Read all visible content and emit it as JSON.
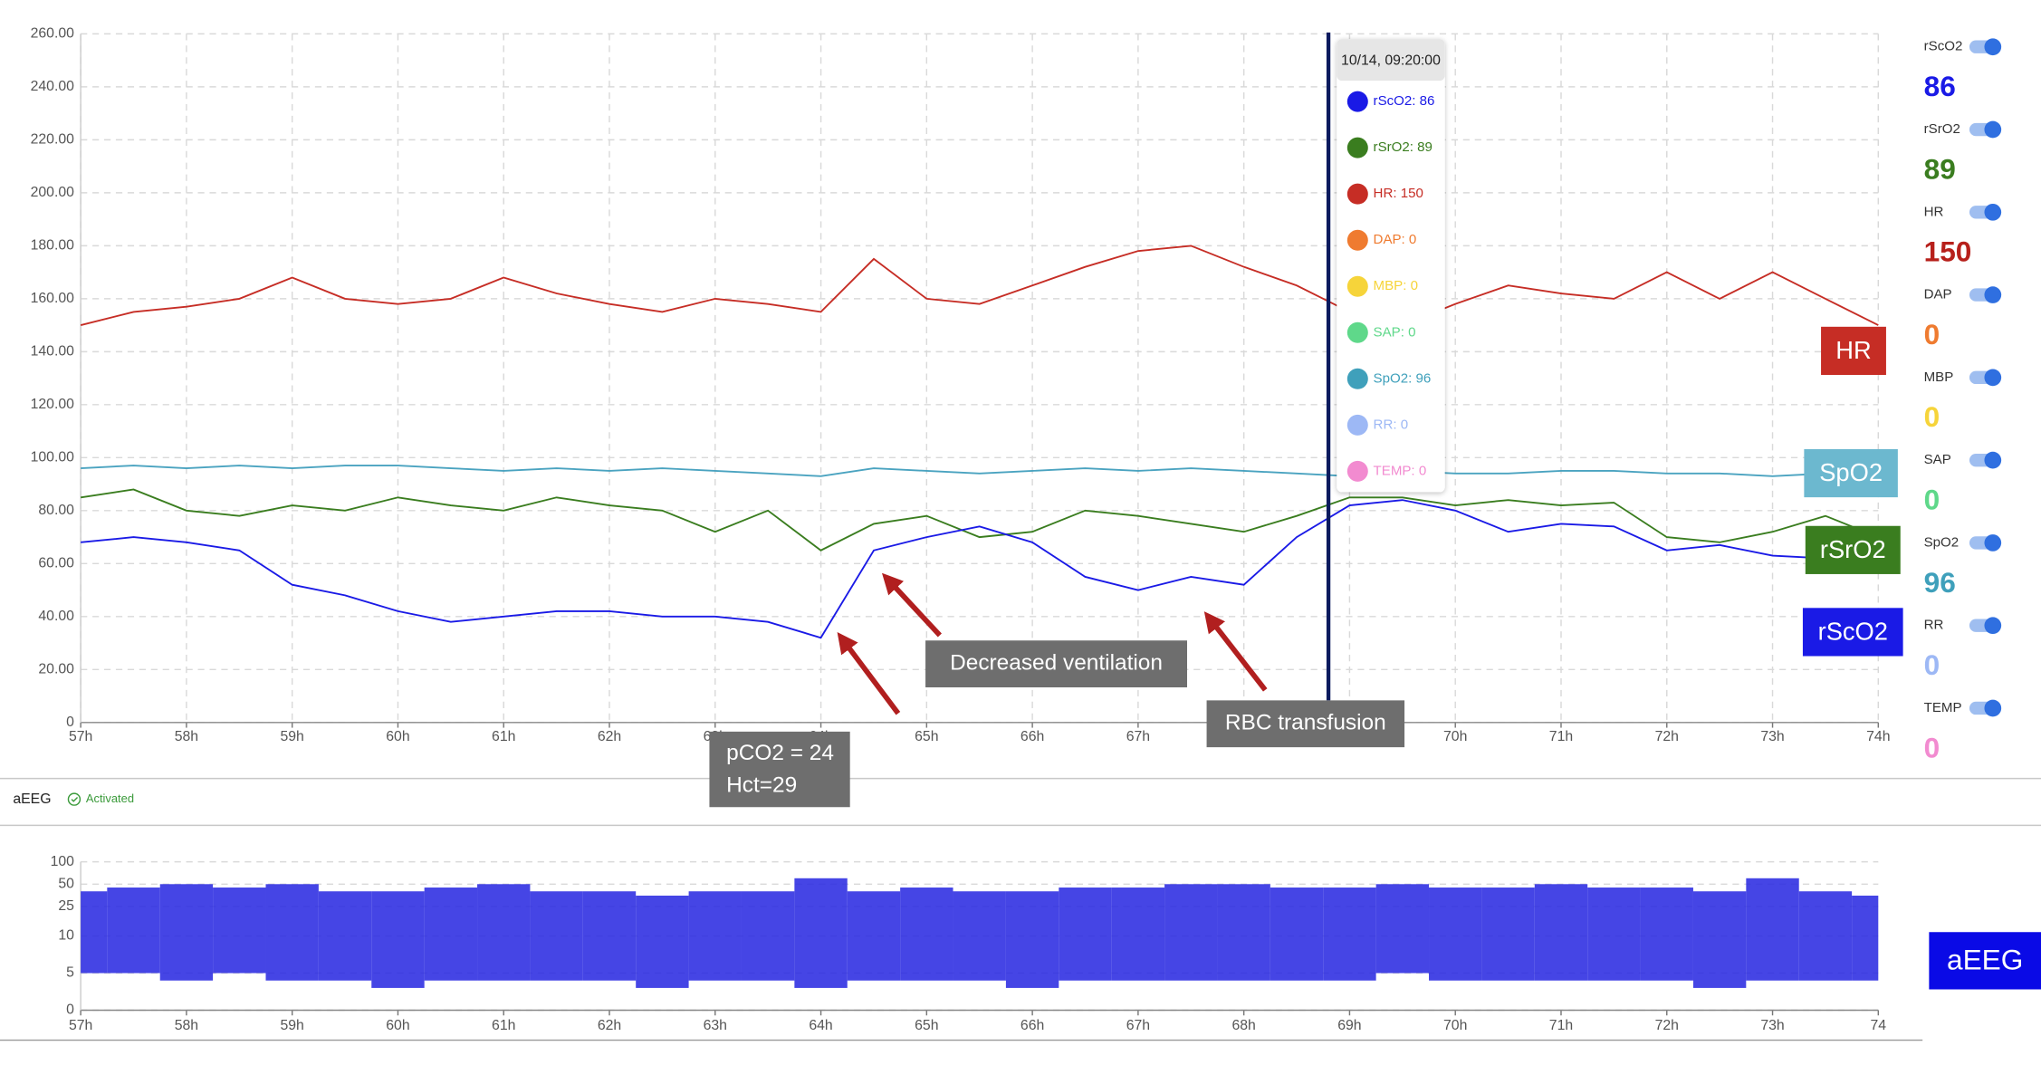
{
  "chart_data": [
    {
      "type": "line",
      "x": [
        57,
        57.5,
        58,
        58.5,
        59,
        59.5,
        60,
        60.5,
        61,
        61.5,
        62,
        62.5,
        63,
        63.5,
        64,
        64.5,
        65,
        65.5,
        66,
        66.5,
        67,
        67.5,
        68,
        68.5,
        69,
        69.5,
        70,
        70.5,
        71,
        71.5,
        72,
        72.5,
        73,
        73.5,
        74
      ],
      "series": [
        {
          "name": "HR",
          "color": "#c62d25",
          "values": [
            150,
            155,
            157,
            160,
            168,
            160,
            158,
            160,
            168,
            162,
            158,
            155,
            160,
            158,
            155,
            175,
            160,
            158,
            165,
            172,
            178,
            180,
            172,
            165,
            155,
            150,
            158,
            165,
            162,
            160,
            170,
            160,
            170,
            160,
            150
          ]
        },
        {
          "name": "SpO2",
          "color": "#4aa3c0",
          "values": [
            96,
            97,
            96,
            97,
            96,
            97,
            97,
            96,
            95,
            96,
            95,
            96,
            95,
            94,
            93,
            96,
            95,
            94,
            95,
            96,
            95,
            96,
            95,
            94,
            93,
            95,
            94,
            94,
            95,
            95,
            94,
            94,
            93,
            94,
            92
          ]
        },
        {
          "name": "rSrO2",
          "color": "#3a7d1f",
          "values": [
            85,
            88,
            80,
            78,
            82,
            80,
            85,
            82,
            80,
            85,
            82,
            80,
            72,
            80,
            65,
            75,
            78,
            70,
            72,
            80,
            78,
            75,
            72,
            78,
            85,
            85,
            82,
            84,
            82,
            83,
            70,
            68,
            72,
            78,
            70
          ]
        },
        {
          "name": "rScO2",
          "color": "#1a1ae6",
          "values": [
            68,
            70,
            68,
            65,
            52,
            48,
            42,
            38,
            40,
            42,
            42,
            40,
            40,
            38,
            32,
            65,
            70,
            74,
            68,
            55,
            50,
            55,
            52,
            70,
            82,
            84,
            80,
            72,
            75,
            74,
            65,
            67,
            63,
            62,
            60
          ]
        }
      ],
      "xlim": [
        57,
        74
      ],
      "xticks": [
        {
          "value": 57,
          "label": "57h"
        },
        {
          "value": 58,
          "label": "58h"
        },
        {
          "value": 59,
          "label": "59h"
        },
        {
          "value": 60,
          "label": "60h"
        },
        {
          "value": 61,
          "label": "61h"
        },
        {
          "value": 62,
          "label": "62h"
        },
        {
          "value": 63,
          "label": "63h"
        },
        {
          "value": 64,
          "label": "64h"
        },
        {
          "value": 65,
          "label": "65h"
        },
        {
          "value": 66,
          "label": "66h"
        },
        {
          "value": 67,
          "label": "67h"
        },
        {
          "value": 68,
          "label": "68h"
        },
        {
          "value": 69,
          "label": "69h"
        },
        {
          "value": 70,
          "label": "70h"
        },
        {
          "value": 71,
          "label": "71h"
        },
        {
          "value": 72,
          "label": "72h"
        },
        {
          "value": 73,
          "label": "73h"
        },
        {
          "value": 74,
          "label": "74h"
        }
      ],
      "ylim": [
        0,
        260
      ],
      "yticks": [
        0,
        {
          "value": 20,
          "label": "20.00"
        },
        {
          "value": 40,
          "label": "40.00"
        },
        {
          "value": 60,
          "label": "60.00"
        },
        {
          "value": 80,
          "label": "80.00"
        },
        {
          "value": 100,
          "label": "100.00"
        },
        {
          "value": 120,
          "label": "120.00"
        },
        {
          "value": 140,
          "label": "140.00"
        },
        {
          "value": 160,
          "label": "160.00"
        },
        {
          "value": 180,
          "label": "180.00"
        },
        {
          "value": 200,
          "label": "200.00"
        },
        {
          "value": 220,
          "label": "220.00"
        },
        {
          "value": 240,
          "label": "240.00"
        },
        {
          "value": 260,
          "label": "260.00"
        }
      ],
      "grid": true,
      "cursor_x": 68.8,
      "annotations": [
        [
          "Decreased ventilation"
        ],
        [
          "RBC transfusion"
        ],
        [
          "pCO2 = 24",
          "Hct=29"
        ]
      ]
    },
    {
      "type": "range",
      "x": [
        57,
        57.5,
        58,
        58.5,
        59,
        59.5,
        60,
        60.5,
        61,
        61.5,
        62,
        62.5,
        63,
        63.5,
        64,
        64.5,
        65,
        65.5,
        66,
        66.5,
        67,
        67.5,
        68,
        68.5,
        69,
        69.5,
        70,
        70.5,
        71,
        71.5,
        72,
        72.5,
        73,
        73.5,
        74
      ],
      "series": [
        {
          "name": "aEEG",
          "color": "#2424e0",
          "lower": [
            5,
            5,
            4,
            5,
            4,
            4,
            3,
            4,
            4,
            4,
            4,
            3,
            4,
            4,
            3,
            4,
            4,
            4,
            3,
            4,
            4,
            4,
            4,
            4,
            4,
            5,
            4,
            4,
            4,
            4,
            4,
            3,
            4,
            4,
            4
          ],
          "upper": [
            40,
            45,
            50,
            45,
            50,
            40,
            40,
            45,
            50,
            40,
            40,
            35,
            40,
            40,
            60,
            40,
            45,
            40,
            40,
            45,
            45,
            50,
            50,
            45,
            45,
            50,
            45,
            45,
            50,
            45,
            45,
            40,
            60,
            40,
            35
          ]
        }
      ],
      "xlim": [
        57,
        74
      ],
      "xticks": [
        {
          "value": 57,
          "label": "57h"
        },
        {
          "value": 58,
          "label": "58h"
        },
        {
          "value": 59,
          "label": "59h"
        },
        {
          "value": 60,
          "label": "60h"
        },
        {
          "value": 61,
          "label": "61h"
        },
        {
          "value": 62,
          "label": "62h"
        },
        {
          "value": 63,
          "label": "63h"
        },
        {
          "value": 64,
          "label": "64h"
        },
        {
          "value": 65,
          "label": "65h"
        },
        {
          "value": 66,
          "label": "66h"
        },
        {
          "value": 67,
          "label": "67h"
        },
        {
          "value": 68,
          "label": "68h"
        },
        {
          "value": 69,
          "label": "69h"
        },
        {
          "value": 70,
          "label": "70h"
        },
        {
          "value": 71,
          "label": "71h"
        },
        {
          "value": 72,
          "label": "72h"
        },
        {
          "value": 73,
          "label": "73h"
        },
        {
          "value": 74,
          "label": "74"
        }
      ],
      "ylim": [
        0,
        100
      ],
      "yscale": "linear-log",
      "ybreak": 10,
      "yticks": [
        0,
        5,
        10,
        25,
        50,
        100
      ],
      "grid": true
    }
  ],
  "panel": {
    "title": "aEEG",
    "status": "Activated"
  },
  "tooltip": {
    "time": "10/14, 09:20:00",
    "items": [
      {
        "label": "rScO2: 86",
        "color": "#1a1ae6"
      },
      {
        "label": "rSrO2: 89",
        "color": "#3a7d1f"
      },
      {
        "label": "HR: 150",
        "color": "#c62d25"
      },
      {
        "label": "DAP: 0",
        "color": "#ef7b30"
      },
      {
        "label": "MBP: 0",
        "color": "#f6d43a"
      },
      {
        "label": "SAP: 0",
        "color": "#5fd88a"
      },
      {
        "label": "SpO2: 96",
        "color": "#3fa0bb"
      },
      {
        "label": "RR: 0",
        "color": "#9db8f5"
      },
      {
        "label": "TEMP: 0",
        "color": "#f28bd0"
      }
    ]
  },
  "sidebar": [
    {
      "name": "rScO2",
      "value": 86,
      "color": "#1a1ae6"
    },
    {
      "name": "rSrO2",
      "value": 89,
      "color": "#3a7d1f"
    },
    {
      "name": "HR",
      "value": 150,
      "color": "#b7201b"
    },
    {
      "name": "DAP",
      "value": 0,
      "color": "#ef7b30"
    },
    {
      "name": "MBP",
      "value": 0,
      "color": "#f6d43a"
    },
    {
      "name": "SAP",
      "value": 0,
      "color": "#5fd88a"
    },
    {
      "name": "SpO2",
      "value": 96,
      "color": "#3fa0bb"
    },
    {
      "name": "RR",
      "value": 0,
      "color": "#9db8f5"
    },
    {
      "name": "TEMP",
      "value": 0,
      "color": "#f28bd0"
    }
  ]
}
